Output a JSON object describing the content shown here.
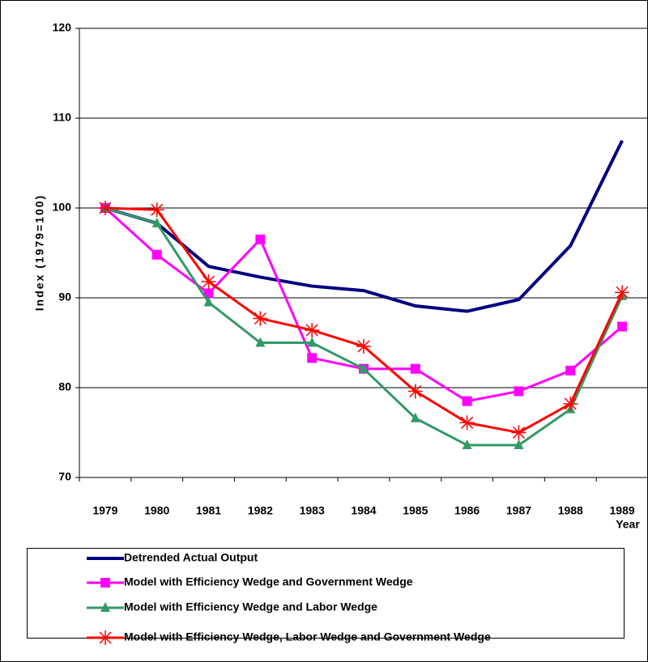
{
  "chart_data": {
    "type": "line",
    "x_label": "Year",
    "y_label": "Index (1979=100)",
    "categories": [
      "1979",
      "1980",
      "1981",
      "1982",
      "1983",
      "1984",
      "1985",
      "1986",
      "1987",
      "1988",
      "1989"
    ],
    "series": [
      {
        "name": "Detrended Actual Output",
        "color": "#000080",
        "marker": "none",
        "values": [
          100,
          98.3,
          93.5,
          92.3,
          91.3,
          90.8,
          89.1,
          88.5,
          89.8,
          95.8,
          107.5
        ]
      },
      {
        "name": "Model with Efficiency Wedge and Government Wedge",
        "color": "#ff00ff",
        "marker": "square",
        "values": [
          100,
          94.8,
          90.5,
          96.5,
          83.3,
          82.1,
          82.1,
          78.5,
          79.6,
          81.9,
          86.8
        ]
      },
      {
        "name": "Model with Efficiency Wedge and Labor Wedge",
        "color": "#339966",
        "marker": "triangle",
        "values": [
          100,
          98.3,
          89.5,
          85,
          85,
          82.1,
          76.6,
          73.6,
          73.6,
          77.6,
          90.2
        ]
      },
      {
        "name": "Model with Efficiency Wedge, Labor Wedge and Government Wedge",
        "color": "#ff0000",
        "marker": "star",
        "values": [
          100,
          99.8,
          91.8,
          87.7,
          86.4,
          84.6,
          79.6,
          76.1,
          75,
          78.2,
          90.6
        ]
      }
    ],
    "ylim": [
      70,
      120
    ],
    "yticks": [
      70,
      80,
      90,
      100,
      110,
      120
    ],
    "grid": true,
    "legend": "bottom"
  }
}
